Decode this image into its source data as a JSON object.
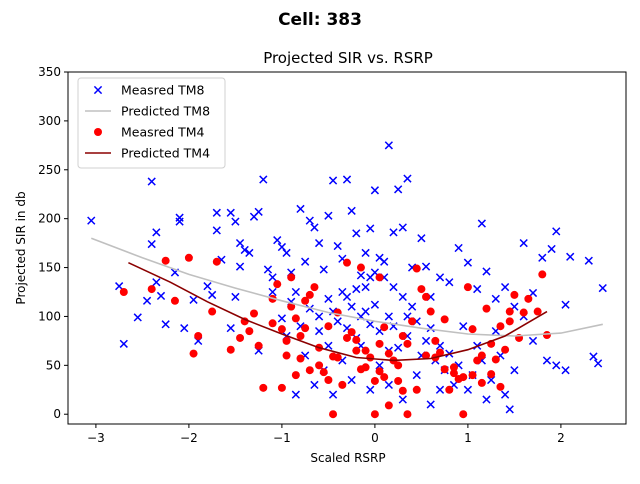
{
  "suptitle": "Cell: 383",
  "chart_data": {
    "type": "scatter",
    "title": "Projected SIR vs. RSRP",
    "xlabel": "Scaled RSRP",
    "ylabel": "Projected SIR in db",
    "xlim": [
      -3.3,
      2.7
    ],
    "ylim": [
      -10,
      350
    ],
    "xticks": [
      -3,
      -2,
      -1,
      0,
      1,
      2
    ],
    "yticks": [
      0,
      50,
      100,
      150,
      200,
      250,
      300,
      350
    ],
    "grid": false,
    "legend_position": "top-left",
    "series": [
      {
        "name": "Measred TM8",
        "kind": "scatter",
        "marker": "x",
        "color": "#0000ff",
        "points": [
          [
            -3.05,
            198
          ],
          [
            -2.75,
            131
          ],
          [
            -2.7,
            72
          ],
          [
            -2.55,
            99
          ],
          [
            -2.45,
            116
          ],
          [
            -2.4,
            238
          ],
          [
            -2.4,
            174
          ],
          [
            -2.35,
            186
          ],
          [
            -2.35,
            135
          ],
          [
            -2.3,
            121
          ],
          [
            -2.25,
            92
          ],
          [
            -2.15,
            145
          ],
          [
            -2.1,
            201
          ],
          [
            -2.1,
            197
          ],
          [
            -2.05,
            88
          ],
          [
            -1.95,
            117
          ],
          [
            -1.9,
            75
          ],
          [
            -1.8,
            131
          ],
          [
            -1.75,
            122
          ],
          [
            -1.7,
            206
          ],
          [
            -1.7,
            188
          ],
          [
            -1.65,
            158
          ],
          [
            -1.55,
            206
          ],
          [
            -1.5,
            197
          ],
          [
            -1.5,
            120
          ],
          [
            -1.45,
            175
          ],
          [
            -1.45,
            151
          ],
          [
            -1.4,
            168
          ],
          [
            -1.35,
            165
          ],
          [
            -1.3,
            202
          ],
          [
            -1.25,
            207
          ],
          [
            -1.2,
            240
          ],
          [
            -1.15,
            148
          ],
          [
            -1.1,
            140
          ],
          [
            -1.05,
            178
          ],
          [
            -1.0,
            171
          ],
          [
            -0.95,
            165
          ],
          [
            -0.9,
            145
          ],
          [
            -0.85,
            125
          ],
          [
            -0.8,
            210
          ],
          [
            -0.75,
            156
          ],
          [
            -0.7,
            198
          ],
          [
            -0.65,
            191
          ],
          [
            -0.6,
            175
          ],
          [
            -0.55,
            148
          ],
          [
            -0.5,
            203
          ],
          [
            -0.45,
            239
          ],
          [
            -0.4,
            172
          ],
          [
            -0.35,
            159
          ],
          [
            -0.3,
            240
          ],
          [
            -0.25,
            208
          ],
          [
            -0.2,
            185
          ],
          [
            -0.15,
            142
          ],
          [
            -0.1,
            165
          ],
          [
            -0.05,
            190
          ],
          [
            0.0,
            229
          ],
          [
            0.05,
            160
          ],
          [
            0.1,
            156
          ],
          [
            0.15,
            275
          ],
          [
            0.2,
            186
          ],
          [
            0.25,
            230
          ],
          [
            0.3,
            191
          ],
          [
            0.35,
            241
          ],
          [
            0.4,
            150
          ],
          [
            0.5,
            180
          ],
          [
            0.55,
            151
          ],
          [
            0.6,
            120
          ],
          [
            0.7,
            140
          ],
          [
            0.8,
            135
          ],
          [
            0.9,
            170
          ],
          [
            1.0,
            155
          ],
          [
            1.1,
            128
          ],
          [
            1.15,
            195
          ],
          [
            1.2,
            146
          ],
          [
            1.3,
            118
          ],
          [
            1.4,
            130
          ],
          [
            1.5,
            110
          ],
          [
            1.6,
            175
          ],
          [
            1.7,
            124
          ],
          [
            1.8,
            160
          ],
          [
            1.9,
            169
          ],
          [
            1.95,
            187
          ],
          [
            2.05,
            112
          ],
          [
            2.1,
            161
          ],
          [
            2.3,
            157
          ],
          [
            2.35,
            59
          ],
          [
            2.4,
            52
          ],
          [
            2.45,
            129
          ],
          [
            -1.1,
            125
          ],
          [
            -1.0,
            98
          ],
          [
            -0.9,
            115
          ],
          [
            -0.8,
            90
          ],
          [
            -0.7,
            108
          ],
          [
            -0.6,
            85
          ],
          [
            -0.5,
            118
          ],
          [
            -0.45,
            105
          ],
          [
            -0.4,
            95
          ],
          [
            -0.35,
            125
          ],
          [
            -0.3,
            88
          ],
          [
            -0.25,
            110
          ],
          [
            -0.2,
            78
          ],
          [
            -0.15,
            100
          ],
          [
            -0.1,
            130
          ],
          [
            -0.05,
            92
          ],
          [
            0.0,
            112
          ],
          [
            0.05,
            85
          ],
          [
            0.1,
            140
          ],
          [
            0.15,
            100
          ],
          [
            0.2,
            90
          ],
          [
            0.25,
            68
          ],
          [
            0.3,
            120
          ],
          [
            0.35,
            80
          ],
          [
            0.4,
            110
          ],
          [
            0.45,
            95
          ],
          [
            0.5,
            60
          ],
          [
            0.55,
            75
          ],
          [
            0.6,
            88
          ],
          [
            0.65,
            55
          ],
          [
            0.7,
            70
          ],
          [
            0.75,
            45
          ],
          [
            0.8,
            62
          ],
          [
            0.85,
            30
          ],
          [
            0.9,
            50
          ],
          [
            0.95,
            90
          ],
          [
            1.0,
            25
          ],
          [
            1.05,
            40
          ],
          [
            1.1,
            70
          ],
          [
            1.15,
            55
          ],
          [
            1.2,
            15
          ],
          [
            1.25,
            35
          ],
          [
            1.3,
            85
          ],
          [
            1.35,
            60
          ],
          [
            1.4,
            20
          ],
          [
            1.45,
            5
          ],
          [
            1.5,
            45
          ],
          [
            1.6,
            100
          ],
          [
            1.7,
            75
          ],
          [
            1.85,
            55
          ],
          [
            1.95,
            50
          ],
          [
            2.05,
            45
          ],
          [
            -0.75,
            60
          ],
          [
            -0.65,
            30
          ],
          [
            -0.55,
            45
          ],
          [
            -0.45,
            20
          ],
          [
            -0.35,
            55
          ],
          [
            -0.25,
            35
          ],
          [
            -0.15,
            70
          ],
          [
            -0.05,
            25
          ],
          [
            0.05,
            50
          ],
          [
            0.15,
            30
          ],
          [
            0.3,
            15
          ],
          [
            0.45,
            40
          ],
          [
            0.6,
            10
          ],
          [
            0.7,
            25
          ],
          [
            -0.95,
            80
          ],
          [
            -0.85,
            20
          ],
          [
            -1.25,
            65
          ],
          [
            -1.55,
            88
          ],
          [
            -0.05,
            140
          ],
          [
            0.0,
            145
          ],
          [
            -0.3,
            120
          ],
          [
            0.2,
            130
          ],
          [
            0.35,
            100
          ],
          [
            0.15,
            65
          ],
          [
            -0.6,
            100
          ],
          [
            -0.5,
            70
          ],
          [
            -0.2,
            128
          ],
          [
            -0.1,
            105
          ]
        ]
      },
      {
        "name": "Predicted TM8",
        "kind": "line",
        "color": "#c0c0c0",
        "points": [
          [
            -3.05,
            180
          ],
          [
            -2.5,
            160
          ],
          [
            -2.0,
            143
          ],
          [
            -1.5,
            129
          ],
          [
            -1.0,
            116
          ],
          [
            -0.5,
            104
          ],
          [
            0.0,
            95
          ],
          [
            0.5,
            88
          ],
          [
            1.0,
            82
          ],
          [
            1.5,
            80
          ],
          [
            2.0,
            83
          ],
          [
            2.45,
            92
          ]
        ]
      },
      {
        "name": "Measred TM4",
        "kind": "scatter",
        "marker": "o",
        "color": "#ff0000",
        "points": [
          [
            -2.7,
            125
          ],
          [
            -2.4,
            128
          ],
          [
            -2.25,
            157
          ],
          [
            -2.15,
            116
          ],
          [
            -2.0,
            160
          ],
          [
            -1.95,
            62
          ],
          [
            -1.9,
            80
          ],
          [
            -1.75,
            105
          ],
          [
            -1.7,
            156
          ],
          [
            -1.55,
            66
          ],
          [
            -1.45,
            78
          ],
          [
            -1.4,
            95
          ],
          [
            -1.3,
            103
          ],
          [
            -1.25,
            70
          ],
          [
            -1.2,
            27
          ],
          [
            -1.1,
            118
          ],
          [
            -1.05,
            133
          ],
          [
            -1.0,
            27
          ],
          [
            -0.95,
            75
          ],
          [
            -0.9,
            140
          ],
          [
            -0.85,
            98
          ],
          [
            -0.8,
            80
          ],
          [
            -0.75,
            116
          ],
          [
            -0.7,
            122
          ],
          [
            -0.65,
            130
          ],
          [
            -0.6,
            68
          ],
          [
            -0.55,
            43
          ],
          [
            -0.5,
            90
          ],
          [
            -0.45,
            59
          ],
          [
            -0.4,
            104
          ],
          [
            -0.35,
            30
          ],
          [
            -0.3,
            155
          ],
          [
            -0.25,
            84
          ],
          [
            -0.2,
            76
          ],
          [
            -0.15,
            46
          ],
          [
            -0.1,
            65
          ],
          [
            -0.05,
            58
          ],
          [
            0.0,
            0
          ],
          [
            0.05,
            72
          ],
          [
            0.1,
            89
          ],
          [
            0.15,
            9
          ],
          [
            0.2,
            55
          ],
          [
            0.25,
            34
          ],
          [
            0.3,
            24
          ],
          [
            0.35,
            72
          ],
          [
            0.4,
            95
          ],
          [
            0.45,
            149
          ],
          [
            0.5,
            128
          ],
          [
            0.55,
            120
          ],
          [
            0.6,
            105
          ],
          [
            0.65,
            75
          ],
          [
            0.7,
            63
          ],
          [
            0.75,
            97
          ],
          [
            0.8,
            25
          ],
          [
            0.85,
            42
          ],
          [
            0.9,
            36
          ],
          [
            0.95,
            0
          ],
          [
            1.0,
            130
          ],
          [
            1.05,
            87
          ],
          [
            1.1,
            55
          ],
          [
            1.15,
            32
          ],
          [
            1.2,
            108
          ],
          [
            1.25,
            41
          ],
          [
            1.3,
            56
          ],
          [
            1.35,
            28
          ],
          [
            1.4,
            66
          ],
          [
            1.45,
            95
          ],
          [
            1.5,
            122
          ],
          [
            1.55,
            78
          ],
          [
            1.6,
            104
          ],
          [
            1.65,
            118
          ],
          [
            1.75,
            105
          ],
          [
            1.8,
            143
          ],
          [
            1.85,
            81
          ],
          [
            -1.1,
            93
          ],
          [
            -1.0,
            87
          ],
          [
            -0.95,
            60
          ],
          [
            -0.9,
            110
          ],
          [
            -0.85,
            40
          ],
          [
            -0.8,
            57
          ],
          [
            -0.75,
            88
          ],
          [
            -0.7,
            45
          ],
          [
            -0.6,
            50
          ],
          [
            -0.5,
            35
          ],
          [
            -0.45,
            0
          ],
          [
            -0.4,
            58
          ],
          [
            -0.3,
            78
          ],
          [
            -0.2,
            65
          ],
          [
            -0.1,
            48
          ],
          [
            0.0,
            34
          ],
          [
            0.05,
            44
          ],
          [
            0.15,
            62
          ],
          [
            0.25,
            50
          ],
          [
            0.35,
            0
          ],
          [
            0.45,
            25
          ],
          [
            0.55,
            60
          ],
          [
            0.65,
            58
          ],
          [
            0.75,
            46
          ],
          [
            0.85,
            48
          ],
          [
            0.95,
            38
          ],
          [
            1.05,
            40
          ],
          [
            1.15,
            60
          ],
          [
            1.25,
            72
          ],
          [
            1.35,
            90
          ],
          [
            1.45,
            105
          ],
          [
            -0.15,
            150
          ],
          [
            0.05,
            140
          ],
          [
            0.1,
            38
          ],
          [
            0.3,
            80
          ],
          [
            -1.35,
            85
          ]
        ]
      },
      {
        "name": "Predicted TM4",
        "kind": "line",
        "color": "#8b0000",
        "points": [
          [
            -2.65,
            155
          ],
          [
            -2.2,
            135
          ],
          [
            -1.8,
            115
          ],
          [
            -1.4,
            97
          ],
          [
            -1.0,
            82
          ],
          [
            -0.6,
            68
          ],
          [
            -0.2,
            58
          ],
          [
            0.2,
            55
          ],
          [
            0.6,
            57
          ],
          [
            1.0,
            66
          ],
          [
            1.4,
            80
          ],
          [
            1.85,
            105
          ]
        ]
      }
    ]
  }
}
